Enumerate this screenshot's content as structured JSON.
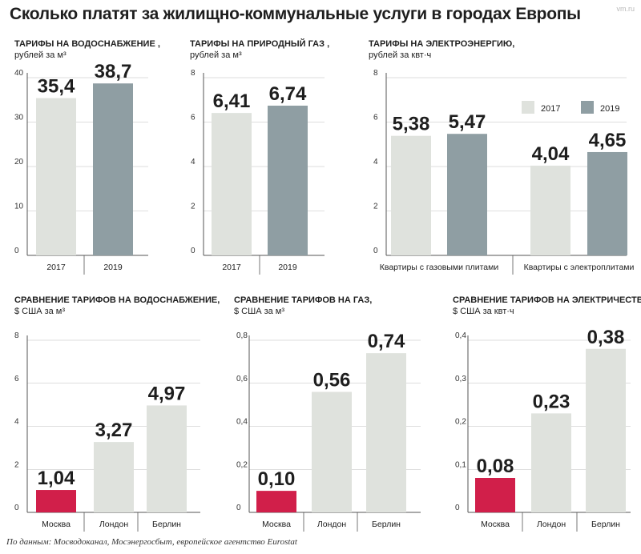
{
  "header": {
    "title": "Сколько платят за жилищно-коммунальные услуги в городах Европы",
    "logo": "vm.ru"
  },
  "footer": {
    "source": "По данным: Мосводоканал, Мосэнергосбыт, европейское агентство Eurostat"
  },
  "colors": {
    "bar_2017": "#dfe2dd",
    "bar_2019": "#8f9ea3",
    "bar_moscow": "#d11f4a",
    "bar_other": "#dfe2dd",
    "axis": "#555555",
    "grid": "#bdbdbd"
  },
  "chart_data": [
    {
      "id": "water-rub",
      "type": "bar",
      "title": "ТАРИФЫ НА ВОДОСНАБЖЕНИЕ ,",
      "unit": "рублей за м³",
      "categories": [
        "2017",
        "2019"
      ],
      "values": [
        35.4,
        38.7
      ],
      "value_labels": [
        "35,4",
        "38,7"
      ],
      "ylim": [
        0,
        40
      ],
      "yticks": [
        "0",
        "10",
        "20",
        "30",
        "40"
      ],
      "ytick_values": [
        0,
        10,
        20,
        30,
        40
      ]
    },
    {
      "id": "gas-rub",
      "type": "bar",
      "title": "ТАРИФЫ НА ПРИРОДНЫЙ ГАЗ ,",
      "unit": "рублей за м³",
      "categories": [
        "2017",
        "2019"
      ],
      "values": [
        6.41,
        6.74
      ],
      "value_labels": [
        "6,41",
        "6,74"
      ],
      "ylim": [
        0,
        8
      ],
      "yticks": [
        "0",
        "2",
        "4",
        "6",
        "8"
      ],
      "ytick_values": [
        0,
        2,
        4,
        6,
        8
      ]
    },
    {
      "id": "electricity-rub",
      "type": "bar",
      "title": "ТАРИФЫ НА ЭЛЕКТРОЭНЕРГИЮ,",
      "unit": "рублей за квт·ч",
      "categories": [
        "Квартиры с газовыми плитами",
        "Квартиры с электроплитами"
      ],
      "series": [
        {
          "name": "2017",
          "values": [
            5.38,
            4.04
          ],
          "value_labels": [
            "5,38",
            "4,04"
          ]
        },
        {
          "name": "2019",
          "values": [
            5.47,
            4.65
          ],
          "value_labels": [
            "5,47",
            "4,65"
          ]
        }
      ],
      "legend": "top-right",
      "ylim": [
        0,
        8
      ],
      "yticks": [
        "0",
        "2",
        "4",
        "6",
        "8"
      ],
      "ytick_values": [
        0,
        2,
        4,
        6,
        8
      ]
    },
    {
      "id": "water-usd",
      "type": "bar",
      "title": "СРАВНЕНИЕ ТАРИФОВ НА ВОДОСНАБЖЕНИЕ,",
      "unit": "$ США за м³",
      "categories": [
        "Москва",
        "Лондон",
        "Берлин"
      ],
      "values": [
        1.04,
        3.27,
        4.97
      ],
      "value_labels": [
        "1,04",
        "3,27",
        "4,97"
      ],
      "ylim": [
        0,
        8
      ],
      "yticks": [
        "0",
        "2",
        "4",
        "6",
        "8"
      ],
      "ytick_values": [
        0,
        2,
        4,
        6,
        8
      ]
    },
    {
      "id": "gas-usd",
      "type": "bar",
      "title": "СРАВНЕНИЕ ТАРИФОВ НА ГАЗ,",
      "unit": "$ США за м³",
      "categories": [
        "Москва",
        "Лондон",
        "Берлин"
      ],
      "values": [
        0.1,
        0.56,
        0.74
      ],
      "value_labels": [
        "0,10",
        "0,56",
        "0,74"
      ],
      "ylim": [
        0,
        0.8
      ],
      "yticks": [
        "0",
        "0,2",
        "0,4",
        "0,6",
        "0,8"
      ],
      "ytick_values": [
        0,
        0.2,
        0.4,
        0.6,
        0.8
      ]
    },
    {
      "id": "electricity-usd",
      "type": "bar",
      "title": "СРАВНЕНИЕ ТАРИФОВ НА ЭЛЕКТРИЧЕСТВО,",
      "unit": "$ США за квт·ч",
      "categories": [
        "Москва",
        "Лондон",
        "Берлин"
      ],
      "values": [
        0.08,
        0.23,
        0.38
      ],
      "value_labels": [
        "0,08",
        "0,23",
        "0,38"
      ],
      "ylim": [
        0,
        0.4
      ],
      "yticks": [
        "0",
        "0,1",
        "0,2",
        "0,3",
        "0,4"
      ],
      "ytick_values": [
        0,
        0.1,
        0.2,
        0.3,
        0.4
      ]
    }
  ]
}
